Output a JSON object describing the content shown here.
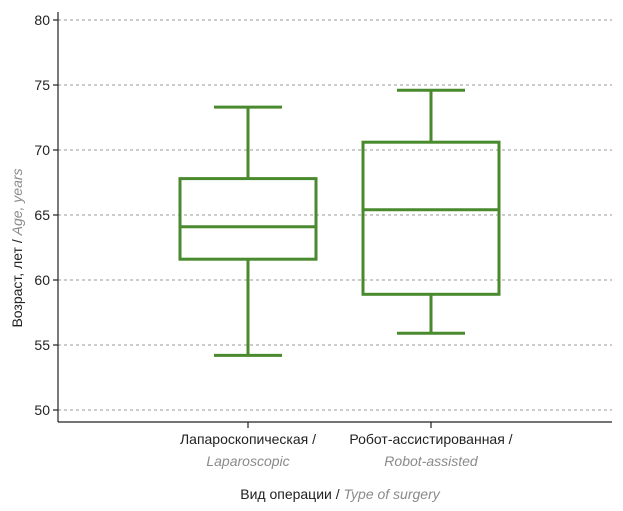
{
  "chart_data": {
    "type": "box",
    "categories": [
      {
        "label_ru": "Лапароскопическая /",
        "label_en": "Laparoscopic"
      },
      {
        "label_ru": "Робот-ассистированная /",
        "label_en": "Robot-assisted"
      }
    ],
    "boxes": [
      {
        "whisker_low": 54.2,
        "q1": 61.6,
        "median": 64.1,
        "q3": 67.8,
        "whisker_high": 73.3
      },
      {
        "whisker_low": 55.9,
        "q1": 58.9,
        "median": 65.4,
        "q3": 70.6,
        "whisker_high": 74.6
      }
    ],
    "ylim": [
      50,
      80
    ],
    "yticks": [
      50,
      55,
      60,
      65,
      70,
      75,
      80
    ],
    "ylabel_ru": "Возраст, лет / ",
    "ylabel_en": "Age, years",
    "xlabel_ru": "Вид операции / ",
    "xlabel_en": "Type of surgery",
    "grid": true,
    "grid_style": "dashed",
    "box_color": "#4a8a2e",
    "axis_color": "#222222",
    "grid_color": "#9a9a9a"
  }
}
